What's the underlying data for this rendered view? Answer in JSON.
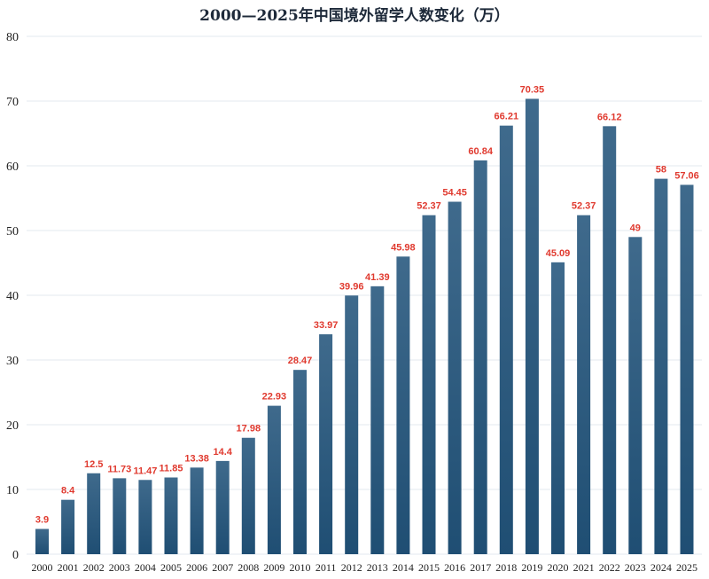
{
  "chart_data": {
    "type": "bar",
    "title": "2000—2025年中国境外留学人数变化（万）",
    "xlabel": "",
    "ylabel": "",
    "ylim": [
      0,
      80
    ],
    "yticks": [
      0,
      10,
      20,
      30,
      40,
      50,
      60,
      70,
      80
    ],
    "grid": true,
    "categories": [
      "2000",
      "2001",
      "2002",
      "2003",
      "2004",
      "2005",
      "2006",
      "2007",
      "2008",
      "2009",
      "2010",
      "2011",
      "2012",
      "2013",
      "2014",
      "2015",
      "2016",
      "2017",
      "2018",
      "2019",
      "2020",
      "2021",
      "2022",
      "2023",
      "2024",
      "2025"
    ],
    "values": [
      3.9,
      8.4,
      12.5,
      11.73,
      11.47,
      11.85,
      13.38,
      14.4,
      17.98,
      22.93,
      28.47,
      33.97,
      39.96,
      41.39,
      45.98,
      52.37,
      54.45,
      60.84,
      66.21,
      70.35,
      45.09,
      52.37,
      66.12,
      49,
      58,
      57.06
    ],
    "data_labels": [
      "3.9",
      "8.4",
      "12.5",
      "11.73",
      "11.47",
      "11.85",
      "13.38",
      "14.4",
      "17.98",
      "22.93",
      "28.47",
      "33.97",
      "39.96",
      "41.39",
      "45.98",
      "52.37",
      "54.45",
      "60.84",
      "66.21",
      "70.35",
      "45.09",
      "52.37",
      "66.12",
      "49",
      "58",
      "57.06"
    ],
    "colors": {
      "bar_top": "#3f6a8c",
      "bar_bottom": "#1f4e73",
      "data_label": "#e03a2f",
      "grid": "#e3e9ef"
    }
  }
}
